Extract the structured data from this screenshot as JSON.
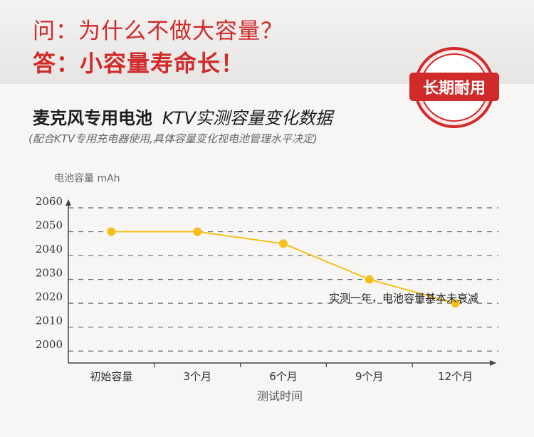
{
  "header": {
    "question": "问：为什么不做大容量？",
    "answer": "答：小容量寿命长！",
    "badge": "长期耐用",
    "colors": {
      "accent": "#d12a2a"
    }
  },
  "chart_data": {
    "type": "line",
    "title_main": "麦克风专用电池",
    "title_sub": "KTV实测容量变化数据",
    "subtitle": "(配合KTV专用充电器使用,具体容量变化视电池管理水平决定)",
    "ylabel": "电池容量 mAh",
    "xlabel": "测试时间",
    "categories": [
      "初始容量",
      "3个月",
      "6个月",
      "9个月",
      "12个月"
    ],
    "yticks": [
      2000,
      2010,
      2020,
      2030,
      2040,
      2050,
      2060
    ],
    "ylim": [
      1995,
      2060
    ],
    "series": [
      {
        "values": [
          2050,
          2050,
          2045,
          2030,
          2020
        ],
        "color": "#f5c01a"
      }
    ],
    "annotation": "实测一年，电池容量基本未衰减",
    "grid": "dashed-horizontal"
  }
}
